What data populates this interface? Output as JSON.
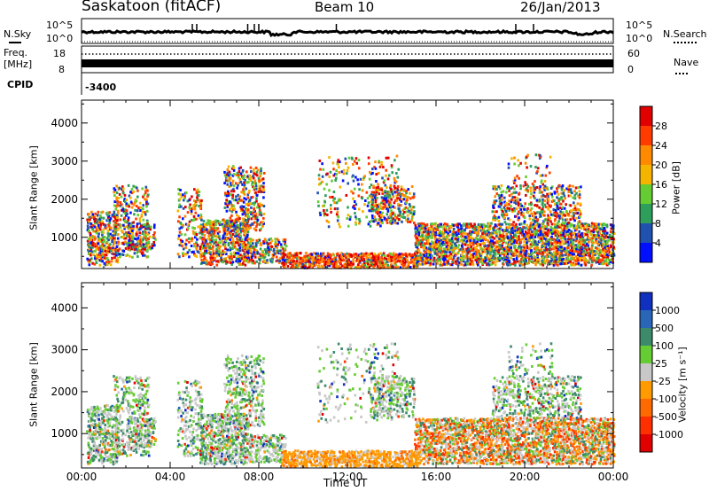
{
  "header": {
    "station": "Saskatoon (fitACF)",
    "beam": "Beam 10",
    "date": "26/Jan/2013"
  },
  "top_panels": {
    "nsky_label": "N.Sky",
    "nsearch_label": "N.Search",
    "log_top": "10^5",
    "log_bottom": "10^0",
    "freq_label_line1": "Freq.",
    "freq_label_line2": "[MHz]",
    "freq_ticks": [
      "18",
      "8"
    ],
    "nave_label": "Nave",
    "nave_ticks": [
      "60",
      "0"
    ],
    "cpid_label": "CPID",
    "cpid_value": "-3400"
  },
  "chart_data": [
    {
      "type": "heatmap",
      "name": "power-panel",
      "ylabel": "Slant Range [km]",
      "xlabel": "",
      "ylim": [
        180,
        4600
      ],
      "xlim_hours": [
        0,
        24
      ],
      "y_ticks": [
        1000,
        2000,
        3000,
        4000
      ],
      "colorbar": {
        "label": "Power [dB]",
        "ticks": [
          "28",
          "24",
          "20",
          "16",
          "12",
          "8",
          "4"
        ],
        "colors": [
          "#e00000",
          "#ff3b00",
          "#ff8a00",
          "#f5b400",
          "#66cc33",
          "#2e9e5b",
          "#2050b0",
          "#0010ff"
        ]
      }
    },
    {
      "type": "heatmap",
      "name": "velocity-panel",
      "ylabel": "Slant Range [km]",
      "xlabel": "Time UT",
      "ylim": [
        180,
        4600
      ],
      "xlim_hours": [
        0,
        24
      ],
      "y_ticks": [
        1000,
        2000,
        3000,
        4000
      ],
      "x_ticks": [
        "00:00",
        "04:00",
        "08:00",
        "12:00",
        "16:00",
        "20:00",
        "00:00"
      ],
      "colorbar": {
        "label": "Velocity [m s⁻¹]",
        "ticks": [
          "1000",
          "500",
          "100",
          "25",
          "-25",
          "-100",
          "-500",
          "-1000"
        ],
        "colors": [
          "#1030c0",
          "#2a66b8",
          "#3c8a6a",
          "#66cc33",
          "#c8c8c8",
          "#ff9a00",
          "#ff6a00",
          "#ff3000",
          "#e00000"
        ]
      }
    }
  ]
}
